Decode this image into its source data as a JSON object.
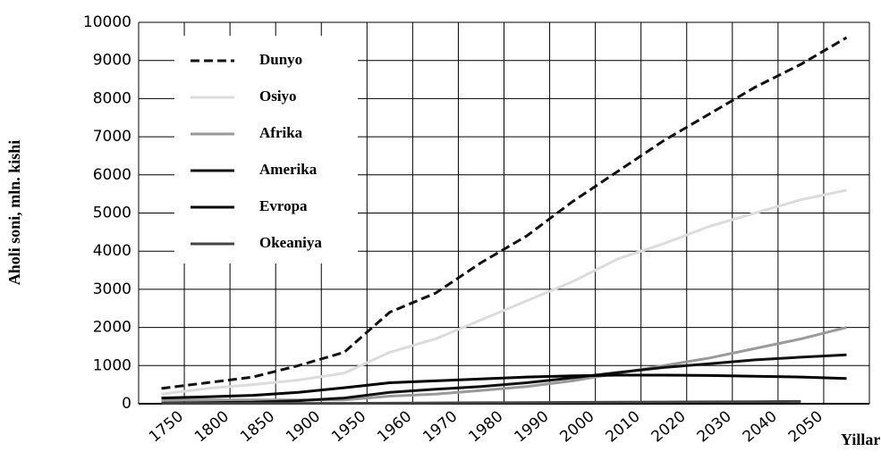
{
  "chart_data": {
    "type": "line",
    "y_label": "Aholi soni, mln. kishi",
    "x_label": "Yillar",
    "categories": [
      "1750",
      "1800",
      "1850",
      "1900",
      "1950",
      "1960",
      "1970",
      "1980",
      "1990",
      "2000",
      "2010",
      "2020",
      "2030",
      "2040",
      "2050",
      null
    ],
    "series": [
      {
        "name": "Dunyo",
        "color": "#111111",
        "dashed": true,
        "values": [
          400,
          550,
          700,
          1000,
          1350,
          2400,
          2900,
          3700,
          4400,
          5300,
          6100,
          6900,
          7600,
          8300,
          8900,
          9600
        ]
      },
      {
        "name": "Osiyo",
        "color": "#dcdcdc",
        "values": [
          250,
          400,
          500,
          620,
          800,
          1350,
          1700,
          2200,
          2700,
          3200,
          3800,
          4200,
          4650,
          5000,
          5350,
          5600
        ]
      },
      {
        "name": "Afrika",
        "color": "#9a9a9a",
        "values": [
          100,
          100,
          100,
          100,
          100,
          200,
          250,
          350,
          450,
          600,
          800,
          1000,
          1200,
          1450,
          1700,
          2000
        ]
      },
      {
        "name": "Amerika",
        "color": "#111111",
        "values": [
          20,
          30,
          40,
          80,
          150,
          300,
          380,
          450,
          550,
          680,
          820,
          950,
          1050,
          1150,
          1220,
          1280
        ]
      },
      {
        "name": "Evropa",
        "color": "#000000",
        "values": [
          150,
          180,
          220,
          300,
          420,
          550,
          600,
          650,
          700,
          730,
          750,
          750,
          740,
          720,
          700,
          660
        ]
      },
      {
        "name": "Okeaniya",
        "color": "#444444",
        "values": [
          10,
          10,
          10,
          10,
          10,
          15,
          20,
          25,
          30,
          35,
          40,
          45,
          50,
          55,
          60,
          null
        ]
      }
    ],
    "ylim": [
      0,
      10000
    ],
    "yticks": [
      0,
      1000,
      2000,
      3000,
      4000,
      5000,
      6000,
      7000,
      8000,
      9000,
      10000
    ],
    "grid": true
  }
}
